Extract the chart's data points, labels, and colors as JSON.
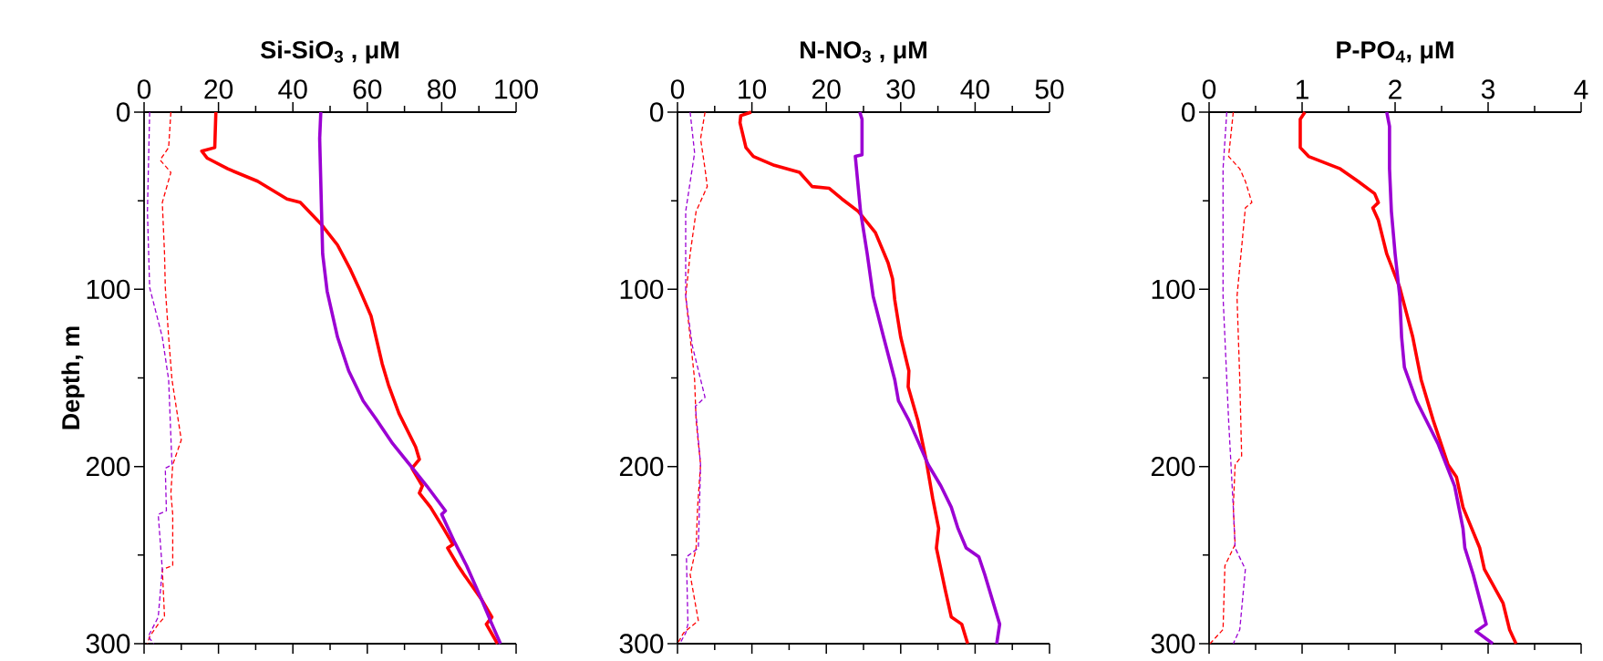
{
  "chart_data": [
    {
      "type": "line",
      "xlabel": "Si-SiO$_{3}$ , μM",
      "ylabel": "Depth, m",
      "xlim": [
        0,
        100
      ],
      "xticks": [
        0,
        20,
        40,
        60,
        80,
        100
      ],
      "ylim": [
        300,
        0
      ],
      "yticks": [
        0,
        100,
        200,
        300
      ],
      "marker": "none",
      "line_style": "solid",
      "series": [
        {
          "color": "#ff0000",
          "x": [
            19.3,
            19,
            15.5,
            17,
            22.5,
            30.5,
            38.4,
            42,
            47.5,
            52,
            55.5,
            57.7,
            61,
            64,
            65.7,
            68.5,
            73,
            74,
            72,
            74.8,
            74,
            77,
            80.5,
            83,
            81.6,
            84.4,
            86,
            90.7,
            93.5,
            92,
            95
          ],
          "values": [
            0,
            20,
            22,
            26,
            32,
            39,
            49,
            51,
            63,
            75,
            89,
            99,
            115,
            142,
            154,
            170,
            189,
            196,
            201,
            211,
            215,
            223,
            235,
            244,
            246,
            256,
            261,
            275,
            285,
            289,
            300
          ]
        },
        {
          "color": "#9b00d3",
          "x": [
            47.5,
            47.2,
            47.7,
            48,
            49.2,
            52,
            55,
            58.9,
            62.3,
            66.8,
            71.4,
            76,
            81,
            80,
            83.3,
            86.7,
            90.7,
            93.5,
            95.8
          ],
          "values": [
            0,
            15,
            56,
            80,
            101,
            127,
            146,
            163,
            173,
            187,
            199,
            211,
            225,
            227,
            242,
            256,
            275,
            289,
            300
          ]
        },
        {
          "color": "#ff0000",
          "line_style": "dashed",
          "x": [
            7.2,
            6.6,
            4.3,
            7.2,
            4.9,
            5.5,
            5.7,
            6.6,
            7.5,
            10,
            7.7,
            7.2,
            7.7,
            7.7,
            4.9,
            5.5,
            3.8,
            1.5,
            0.9
          ],
          "values": [
            0,
            20,
            27,
            34,
            51,
            80,
            99,
            127,
            151,
            185,
            199,
            215,
            227,
            256,
            258,
            285,
            289,
            296,
            300
          ]
        },
        {
          "color": "#9b00d3",
          "line_style": "dashed",
          "x": [
            1.5,
            0.9,
            1.5,
            4.9,
            6.6,
            7.5,
            5.7,
            6,
            3.8,
            4.9,
            3.8,
            1.1,
            2.6
          ],
          "values": [
            0,
            56,
            99,
            127,
            151,
            199,
            201,
            225,
            227,
            258,
            285,
            296,
            300
          ]
        }
      ]
    },
    {
      "type": "line",
      "xlabel": "N-NO$_{3}$ , μM",
      "xlim": [
        0,
        50
      ],
      "xticks": [
        0,
        10,
        20,
        30,
        40,
        50
      ],
      "ylim": [
        300,
        0
      ],
      "yticks": [
        0,
        100,
        200,
        300
      ],
      "marker": "none",
      "line_style": "solid",
      "series": [
        {
          "color": "#ff0000",
          "x": [
            9.9,
            8.5,
            8.4,
            9.2,
            10.2,
            13,
            16.4,
            18.1,
            20.4,
            22.1,
            24.3,
            26.6,
            28.3,
            28.9,
            29.2,
            30,
            31.1,
            31,
            32.3,
            33.4,
            34.3,
            35.1,
            34.8,
            36,
            36.8,
            38.2,
            39
          ],
          "values": [
            0,
            2,
            6,
            20,
            25,
            30,
            34,
            42,
            43,
            49,
            56,
            68,
            85,
            94,
            106,
            127,
            146,
            155,
            174,
            196,
            218,
            235,
            246,
            270,
            285,
            289,
            300
          ]
        },
        {
          "color": "#9b00d3",
          "x": [
            24.5,
            24.8,
            24.8,
            23.9,
            24.6,
            25.5,
            26.3,
            27.7,
            29.2,
            29.7,
            31.1,
            33.7,
            35.4,
            36.8,
            37.7,
            38.8,
            40.5,
            41.3,
            43.3,
            42.9
          ],
          "values": [
            0,
            4,
            24,
            25,
            56,
            80,
            104,
            127,
            151,
            163,
            174,
            199,
            211,
            223,
            235,
            246,
            251,
            261,
            289,
            300
          ]
        },
        {
          "color": "#ff0000",
          "line_style": "dashed",
          "x": [
            3.7,
            3.1,
            3.7,
            4,
            2.5,
            1.7,
            1.1,
            1.7,
            2.3,
            2.5,
            3.1,
            2.7,
            2.5,
            1.7,
            2.8,
            0.8,
            0
          ],
          "values": [
            0,
            15,
            32,
            42,
            56,
            80,
            104,
            127,
            151,
            174,
            199,
            223,
            246,
            261,
            287,
            294,
            300
          ]
        },
        {
          "color": "#9b00d3",
          "line_style": "dashed",
          "x": [
            1.7,
            2.3,
            1.1,
            1.1,
            2,
            3.7,
            2.4,
            3.1,
            2.8,
            1.2,
            1.4,
            1.1,
            0.3
          ],
          "values": [
            0,
            23,
            56,
            104,
            132,
            161,
            166,
            199,
            246,
            251,
            289,
            294,
            300
          ]
        }
      ]
    },
    {
      "type": "line",
      "xlabel": "P-PO$_{4}$, μM",
      "xlim": [
        0,
        4
      ],
      "xticks": [
        0,
        1,
        2,
        3,
        4
      ],
      "ylim": [
        300,
        0
      ],
      "yticks": [
        0,
        100,
        200,
        300
      ],
      "marker": "none",
      "line_style": "solid",
      "series": [
        {
          "color": "#ff0000",
          "x": [
            1.03,
            0.98,
            0.98,
            1.07,
            1.41,
            1.6,
            1.78,
            1.82,
            1.76,
            1.82,
            1.91,
            2.05,
            2.19,
            2.28,
            2.41,
            2.57,
            2.66,
            2.73,
            2.91,
            2.96,
            3.16,
            3.23,
            3.3
          ],
          "values": [
            0,
            4,
            20,
            25,
            32,
            39,
            46,
            51,
            54,
            61,
            80,
            99,
            127,
            151,
            174,
            199,
            206,
            223,
            246,
            258,
            277,
            292,
            300
          ]
        },
        {
          "color": "#9b00d3",
          "x": [
            1.91,
            1.94,
            1.94,
            1.96,
            2.0,
            2.05,
            2.07,
            2.1,
            2.23,
            2.46,
            2.64,
            2.73,
            2.75,
            2.84,
            2.98,
            2.87,
            3.05
          ],
          "values": [
            0,
            8,
            32,
            56,
            80,
            104,
            127,
            144,
            163,
            187,
            211,
            235,
            246,
            261,
            289,
            293,
            300
          ]
        },
        {
          "color": "#ff0000",
          "line_style": "dashed",
          "x": [
            0.26,
            0.21,
            0.33,
            0.39,
            0.46,
            0.39,
            0.3,
            0.33,
            0.35,
            0.28,
            0.26,
            0.28,
            0.17,
            0.15,
            0.01
          ],
          "values": [
            0,
            25,
            32,
            39,
            51,
            54,
            104,
            151,
            194,
            199,
            223,
            244,
            256,
            292,
            300
          ]
        },
        {
          "color": "#9b00d3",
          "line_style": "dashed",
          "x": [
            0.19,
            0.15,
            0.15,
            0.21,
            0.26,
            0.28,
            0.39,
            0.33,
            0.26
          ],
          "values": [
            0,
            32,
            104,
            174,
            223,
            246,
            258,
            292,
            300
          ]
        }
      ]
    }
  ]
}
